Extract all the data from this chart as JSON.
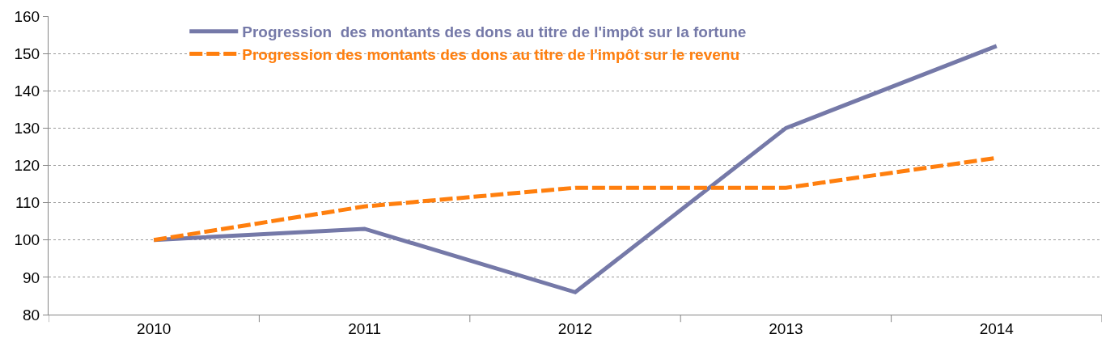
{
  "chart_data": {
    "type": "line",
    "categories": [
      "2010",
      "2011",
      "2012",
      "2013",
      "2014"
    ],
    "series": [
      {
        "name": "Progression  des montants des dons au titre de l'impôt sur la fortune",
        "color": "#7579a8",
        "values": [
          100,
          103,
          86,
          130,
          152
        ],
        "line_style": "solid"
      },
      {
        "name": "Progression des montants des dons au titre de l'impôt sur le revenu",
        "color": "#ff7f0e",
        "values": [
          100,
          109,
          114,
          114,
          122
        ],
        "line_style": "dashed"
      }
    ],
    "ylim": [
      80,
      160
    ],
    "yticks": [
      80,
      90,
      100,
      110,
      120,
      130,
      140,
      150,
      160
    ],
    "grid": "y",
    "legend": "top left",
    "marker": "none"
  }
}
